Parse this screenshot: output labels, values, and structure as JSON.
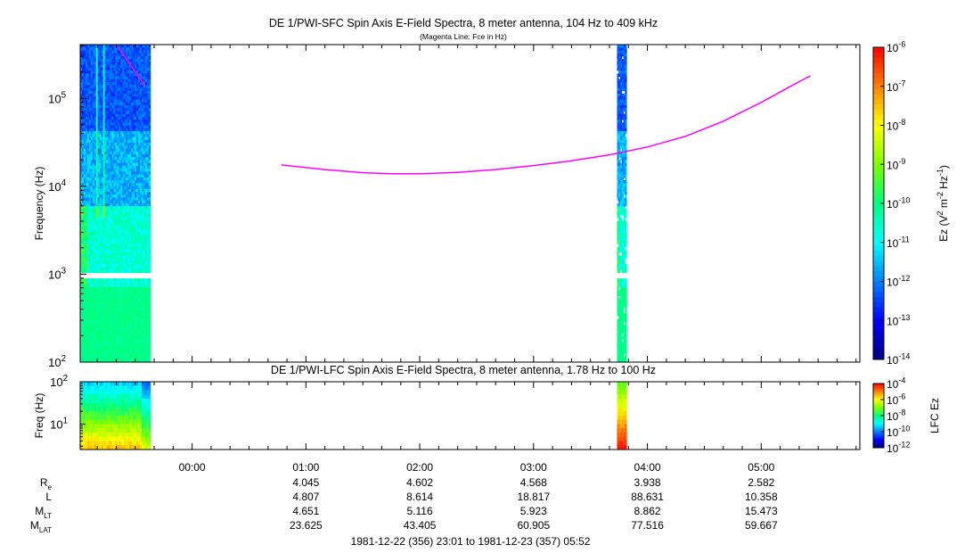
{
  "colors": {
    "background": "#ffffff",
    "fce_line": "#ff00ff",
    "colormap": [
      "#00007f",
      "#0000ff",
      "#0080ff",
      "#00ffff",
      "#00ff80",
      "#80ff00",
      "#ffff00",
      "#ff8000",
      "#ff0000"
    ]
  },
  "chart_data": [
    {
      "type": "heatmap",
      "title": "DE 1/PWI-SFC  Spin Axis E-Field Spectra, 8 meter antenna, 104 Hz to 409 kHz",
      "subtitle": "(Magenta Line: Fce in Hz)",
      "ylabel": "Frequency (Hz)",
      "yscale": "log",
      "ylim": [
        100,
        409000
      ],
      "y_ticks": [
        {
          "value": 100,
          "base": "10",
          "exp": "2"
        },
        {
          "value": 1000,
          "base": "10",
          "exp": "3"
        },
        {
          "value": 10000,
          "base": "10",
          "exp": "4"
        },
        {
          "value": 100000,
          "base": "10",
          "exp": "5"
        }
      ],
      "xlim": [
        "1981-12-22T23:01",
        "1981-12-23T05:52"
      ],
      "data_intervals": [
        {
          "start": "1981-12-22T23:01",
          "end": "1981-12-22T23:38"
        },
        {
          "start": "1981-12-23T03:44",
          "end": "1981-12-23T03:49"
        }
      ],
      "colorbar": {
        "label_parts": [
          "Ez (V",
          "2",
          " m",
          "-2",
          " Hz",
          "-1",
          ")"
        ],
        "scale": "log",
        "range": [
          1e-14,
          1e-06
        ],
        "ticks": [
          {
            "base": "10",
            "exp": "-6"
          },
          {
            "base": "10",
            "exp": "-7"
          },
          {
            "base": "10",
            "exp": "-8"
          },
          {
            "base": "10",
            "exp": "-9"
          },
          {
            "base": "10",
            "exp": "-10"
          },
          {
            "base": "10",
            "exp": "-11"
          },
          {
            "base": "10",
            "exp": "-12"
          },
          {
            "base": "10",
            "exp": "-13"
          },
          {
            "base": "10",
            "exp": "-14"
          }
        ]
      },
      "fce_line": {
        "segments": [
          {
            "points": [
              [
                "1981-12-22T23:21",
                380000
              ],
              [
                "1981-12-22T23:35",
                140000
              ]
            ]
          },
          {
            "points": [
              [
                "1981-12-23T00:47",
                17500
              ],
              [
                "1981-12-23T01:10",
                15500
              ],
              [
                "1981-12-23T01:30",
                14300
              ],
              [
                "1981-12-23T01:45",
                13900
              ],
              [
                "1981-12-23T02:00",
                13900
              ],
              [
                "1981-12-23T02:20",
                14400
              ],
              [
                "1981-12-23T02:40",
                15500
              ],
              [
                "1981-12-23T03:00",
                17200
              ],
              [
                "1981-12-23T03:20",
                19500
              ],
              [
                "1981-12-23T03:40",
                22800
              ],
              [
                "1981-12-23T04:00",
                28000
              ],
              [
                "1981-12-23T04:20",
                37000
              ],
              [
                "1981-12-23T04:40",
                55000
              ],
              [
                "1981-12-23T05:00",
                90000
              ],
              [
                "1981-12-23T05:20",
                155000
              ],
              [
                "1981-12-23T05:26",
                180000
              ]
            ]
          }
        ]
      }
    },
    {
      "type": "heatmap",
      "title": "DE 1/PWI-LFC  Spin Axis E-Field Spectra, 8 meter antenna, 1.78 Hz to 100 Hz",
      "ylabel": "Freq (Hz)",
      "yscale": "log",
      "ylim": [
        2.5,
        100
      ],
      "y_ticks": [
        {
          "value": 10,
          "base": "10",
          "exp": "1"
        },
        {
          "value": 100,
          "base": "10",
          "exp": "2"
        }
      ],
      "xlim": [
        "1981-12-22T23:01",
        "1981-12-23T05:52"
      ],
      "data_intervals": [
        {
          "start": "1981-12-22T23:01",
          "end": "1981-12-22T23:38"
        },
        {
          "start": "1981-12-23T03:44",
          "end": "1981-12-23T03:49"
        }
      ],
      "colorbar": {
        "label": "LFC Ez",
        "scale": "log",
        "range": [
          1e-12,
          0.0001
        ],
        "ticks": [
          {
            "base": "10",
            "exp": "-4"
          },
          {
            "base": "10",
            "exp": "-6"
          },
          {
            "base": "10",
            "exp": "-8"
          },
          {
            "base": "10",
            "exp": "-10"
          },
          {
            "base": "10",
            "exp": "-12"
          }
        ]
      }
    }
  ],
  "time_axis": {
    "ticks": [
      {
        "time": "1981-12-23T00:00",
        "label": "00:00"
      },
      {
        "time": "1981-12-23T01:00",
        "label": "01:00"
      },
      {
        "time": "1981-12-23T02:00",
        "label": "02:00"
      },
      {
        "time": "1981-12-23T03:00",
        "label": "03:00"
      },
      {
        "time": "1981-12-23T04:00",
        "label": "04:00"
      },
      {
        "time": "1981-12-23T05:00",
        "label": "05:00"
      }
    ],
    "ephemeris_rows": [
      {
        "label": "R",
        "sub": "e",
        "values": [
          "",
          "4.045",
          "4.602",
          "4.568",
          "3.938",
          "2.582"
        ]
      },
      {
        "label": "L",
        "sub": "",
        "values": [
          "",
          "4.807",
          "8.614",
          "18.817",
          "88.631",
          "10.358"
        ]
      },
      {
        "label": "M",
        "sub": "LT",
        "values": [
          "",
          "4.651",
          "5.116",
          "5.923",
          "8.862",
          "15.473"
        ]
      },
      {
        "label": "M",
        "sub": "LAT",
        "values": [
          "",
          "23.625",
          "43.405",
          "60.905",
          "77.516",
          "59.667"
        ]
      }
    ],
    "range_label": "1981-12-22 (356) 23:01 to 1981-12-23 (357) 05:52"
  }
}
